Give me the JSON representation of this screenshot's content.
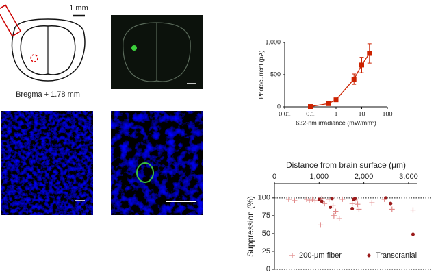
{
  "figure": {
    "scale_label": "1 mm",
    "coordinate_label": "Bregma + 1.78 mm"
  },
  "chart_data": [
    {
      "type": "line",
      "x": [
        0.1,
        0.5,
        1,
        5,
        10,
        20
      ],
      "values": [
        5,
        50,
        110,
        430,
        650,
        830
      ],
      "errors": [
        5,
        10,
        15,
        80,
        120,
        150
      ],
      "color": "#cc2200",
      "xlabel": "632-nm irradiance (mW/mm²)",
      "ylabel": "Photocurrent (pA)",
      "log_x": true,
      "xlim": [
        0.01,
        100
      ],
      "xticks": [
        0.01,
        0.1,
        1,
        10,
        100
      ],
      "ylim": [
        0,
        1000
      ],
      "yticks": [
        0,
        500,
        {
          "value": 1000,
          "label": "1,000"
        }
      ]
    },
    {
      "type": "scatter",
      "xlabel": "Distance from brain surface (μm)",
      "ylabel": "Suppression (%)",
      "xlim": [
        0,
        3200
      ],
      "xticks": [
        0,
        {
          "value": 1000,
          "label": "1,000"
        },
        {
          "value": 2000,
          "label": "2,000"
        },
        {
          "value": 3000,
          "label": "3,000"
        }
      ],
      "ylim": [
        0,
        120
      ],
      "yticks": [
        0,
        25,
        50,
        75,
        100
      ],
      "reference_lines": [
        0,
        100
      ],
      "legend": "lower left",
      "series": [
        {
          "name": "200-μm fiber",
          "color": "#e08888",
          "marker": "plus",
          "x": [
            320,
            450,
            720,
            780,
            850,
            910,
            1030,
            1060,
            1120,
            1220,
            1310,
            1330,
            1370,
            1450,
            1520,
            1740,
            1800,
            1860,
            1890,
            2180,
            2460,
            2630,
            3100
          ],
          "values": [
            98,
            96,
            98,
            96,
            98,
            96,
            62,
            99,
            92,
            98,
            89,
            75,
            81,
            71,
            98,
            92,
            97,
            91,
            84,
            93,
            98,
            84,
            83
          ]
        },
        {
          "name": "Transcranial",
          "color": "#9a1a1a",
          "marker": "dot",
          "x": [
            1000,
            1060,
            1250,
            1290,
            1740,
            1770,
            1800,
            2490,
            2600,
            3100
          ],
          "values": [
            98,
            95,
            87,
            99,
            85,
            98,
            99,
            100,
            92,
            49
          ]
        }
      ]
    }
  ]
}
